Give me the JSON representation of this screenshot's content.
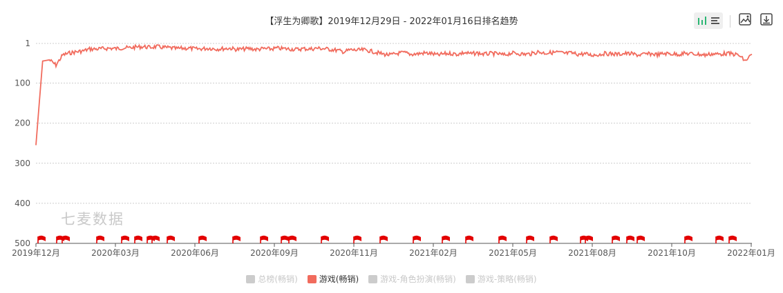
{
  "title": "【浮生为卿歌】2019年12月29日 - 2022年01月16日排名趋势",
  "toolbar": {
    "chart_type_toggle": [
      "bar-chart-icon",
      "list-icon"
    ],
    "save_image": "image-icon",
    "download": "download-icon"
  },
  "watermark": "七麦数据",
  "colors": {
    "series": "#f16b5d",
    "flag": "#e30000",
    "grid": "#cccccc",
    "inactive_legend": "#cccccc",
    "active_toggle": "#2bb673"
  },
  "chart_data": {
    "type": "line",
    "title": "【浮生为卿歌】2019年12月29日 - 2022年01月16日排名趋势",
    "y_axis": {
      "reversed": true,
      "ylim": [
        1,
        500
      ],
      "ticks": [
        1,
        100,
        200,
        300,
        400,
        500
      ]
    },
    "x_axis": {
      "tick_labels": [
        "2019年12月",
        "2020年03月",
        "2020年06月",
        "2020年09月",
        "2020年11月",
        "2021年02月",
        "2021年05月",
        "2021年08月",
        "2021年10月",
        "2022年01月"
      ],
      "start_date": "2019-12-29",
      "end_date": "2022-01-16"
    },
    "grid": true,
    "legend_position": "bottom",
    "legend": [
      {
        "name": "总榜(畅销)",
        "active": false
      },
      {
        "name": "游戏(畅销)",
        "active": true
      },
      {
        "name": "游戏-角色扮演(畅销)",
        "active": false
      },
      {
        "name": "游戏-策略(畅销)",
        "active": false
      }
    ],
    "series": [
      {
        "name": "游戏(畅销)",
        "x": [
          "2019-12-29",
          "2020-01-05",
          "2020-01-12",
          "2020-01-19",
          "2020-01-26",
          "2020-02-02",
          "2020-02-09",
          "2020-02-16",
          "2020-02-23",
          "2020-03-01",
          "2020-03-08",
          "2020-03-15",
          "2020-03-22",
          "2020-03-29",
          "2020-04-05",
          "2020-04-12",
          "2020-04-19",
          "2020-04-26",
          "2020-05-03",
          "2020-05-10",
          "2020-05-17",
          "2020-05-24",
          "2020-05-31",
          "2020-06-07",
          "2020-06-14",
          "2020-06-21",
          "2020-06-28",
          "2020-07-05",
          "2020-07-12",
          "2020-07-19",
          "2020-07-26",
          "2020-08-02",
          "2020-08-09",
          "2020-08-16",
          "2020-08-23",
          "2020-08-30",
          "2020-09-06",
          "2020-09-13",
          "2020-09-20",
          "2020-09-27",
          "2020-10-04",
          "2020-10-11",
          "2020-10-18",
          "2020-10-25",
          "2020-11-01",
          "2020-11-08",
          "2020-11-15",
          "2020-11-22",
          "2020-11-29",
          "2020-12-06",
          "2020-12-13",
          "2020-12-20",
          "2020-12-27",
          "2021-01-03",
          "2021-01-10",
          "2021-01-17",
          "2021-01-24",
          "2021-01-31",
          "2021-02-07",
          "2021-02-14",
          "2021-02-21",
          "2021-02-28",
          "2021-03-07",
          "2021-03-14",
          "2021-03-21",
          "2021-03-28",
          "2021-04-04",
          "2021-04-11",
          "2021-04-18",
          "2021-04-25",
          "2021-05-02",
          "2021-05-09",
          "2021-05-16",
          "2021-05-23",
          "2021-05-30",
          "2021-06-06",
          "2021-06-13",
          "2021-06-20",
          "2021-06-27",
          "2021-07-04",
          "2021-07-11",
          "2021-07-18",
          "2021-07-25",
          "2021-08-01",
          "2021-08-08",
          "2021-08-15",
          "2021-08-22",
          "2021-08-29",
          "2021-09-05",
          "2021-09-12",
          "2021-09-19",
          "2021-09-26",
          "2021-10-03",
          "2021-10-10",
          "2021-10-17",
          "2021-10-24",
          "2021-10-31",
          "2021-11-07",
          "2021-11-14",
          "2021-11-21",
          "2021-11-28",
          "2021-12-05",
          "2021-12-12",
          "2021-12-19",
          "2021-12-26",
          "2022-01-02",
          "2022-01-09",
          "2022-01-16"
        ],
        "y": [
          255,
          45,
          42,
          55,
          30,
          25,
          22,
          20,
          15,
          15,
          14,
          13,
          14,
          12,
          12,
          10,
          9,
          11,
          9,
          11,
          12,
          14,
          13,
          13,
          15,
          14,
          13,
          15,
          14,
          13,
          16,
          15,
          14,
          16,
          14,
          15,
          13,
          14,
          15,
          16,
          14,
          15,
          13,
          14,
          16,
          18,
          22,
          17,
          18,
          17,
          20,
          24,
          28,
          30,
          26,
          24,
          28,
          27,
          25,
          26,
          30,
          27,
          26,
          28,
          24,
          27,
          25,
          28,
          26,
          27,
          30,
          25,
          26,
          28,
          27,
          22,
          25,
          24,
          23,
          26,
          25,
          28,
          27,
          30,
          29,
          26,
          27,
          28,
          26,
          27,
          30,
          28,
          27,
          29,
          26,
          27,
          28,
          26,
          27,
          28,
          30,
          27,
          28,
          26,
          27,
          30,
          45,
          28
        ]
      }
    ]
  }
}
